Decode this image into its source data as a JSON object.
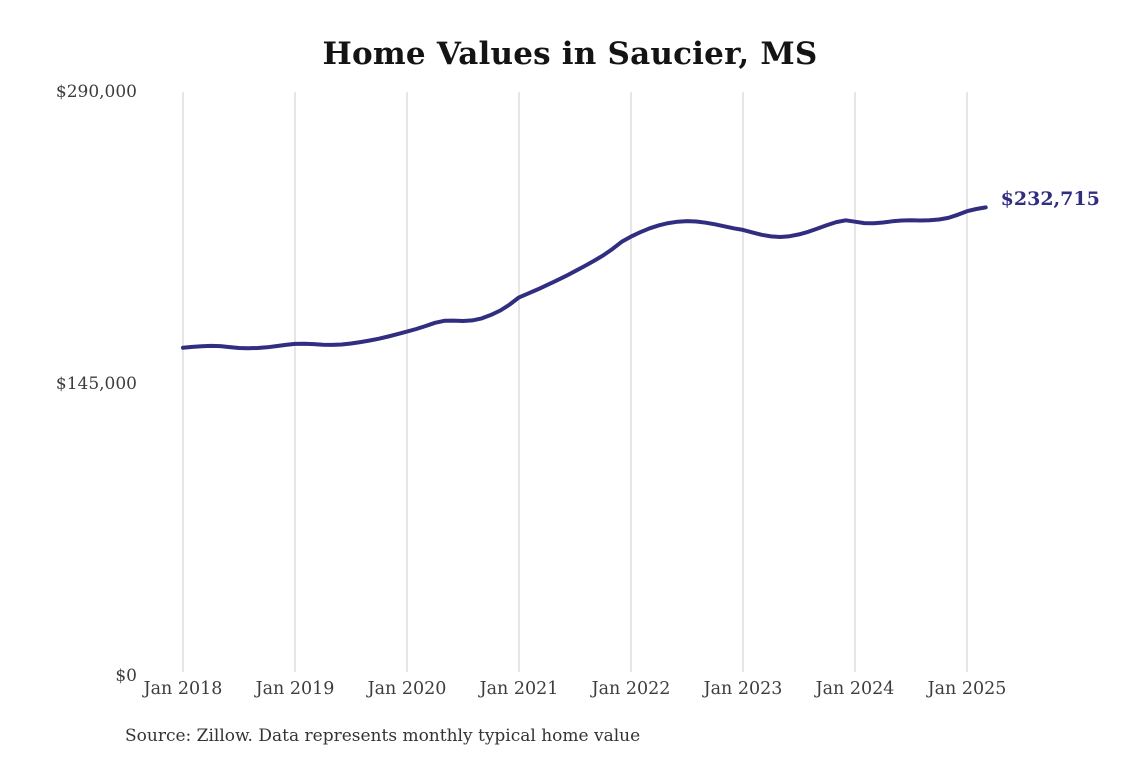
{
  "title": "Home Values in Saucier, MS",
  "source_note": "Source: Zillow. Data represents monthly typical home value",
  "colors": {
    "line": "#312e81",
    "annotation": "#312e81",
    "grid": "#cccccc",
    "tick_text": "#3d3d3d",
    "title_text": "#141414",
    "background": "#ffffff"
  },
  "chart_data": {
    "type": "line",
    "title": "Home Values in Saucier, MS",
    "xlabel": "",
    "ylabel": "",
    "x_start": "2018-01",
    "x_end": "2025-03",
    "x_freq_months": 1,
    "x_tick_labels": [
      "Jan 2018",
      "Jan 2019",
      "Jan 2020",
      "Jan 2021",
      "Jan 2022",
      "Jan 2023",
      "Jan 2024",
      "Jan 2025"
    ],
    "y_ticks": [
      0,
      145000,
      290000
    ],
    "y_tick_labels": [
      "$0",
      "$145,000",
      "$290,000"
    ],
    "ylim": [
      0,
      290000
    ],
    "grid": "vertical-only",
    "legend": "none",
    "end_annotation": "$232,715",
    "series": [
      {
        "name": "Monthly typical home value",
        "values": [
          163000,
          163400,
          163700,
          163900,
          163800,
          163300,
          162900,
          162800,
          162900,
          163200,
          163800,
          164400,
          164900,
          165000,
          164800,
          164500,
          164400,
          164600,
          165100,
          165800,
          166600,
          167500,
          168600,
          169800,
          171000,
          172300,
          173800,
          175400,
          176400,
          176500,
          176300,
          176600,
          177600,
          179300,
          181500,
          184500,
          188000,
          190000,
          192000,
          194100,
          196300,
          198600,
          201000,
          203500,
          206100,
          208800,
          212000,
          215600,
          218200,
          220400,
          222300,
          223800,
          224900,
          225600,
          225900,
          225700,
          225100,
          224300,
          223300,
          222300,
          221500,
          220300,
          219100,
          218300,
          218000,
          218400,
          219300,
          220600,
          222200,
          223900,
          225400,
          226300,
          225600,
          224900,
          224800,
          225200,
          225800,
          226200,
          226300,
          226200,
          226300,
          226700,
          227500,
          229000,
          230800,
          231900,
          232715
        ]
      }
    ]
  }
}
